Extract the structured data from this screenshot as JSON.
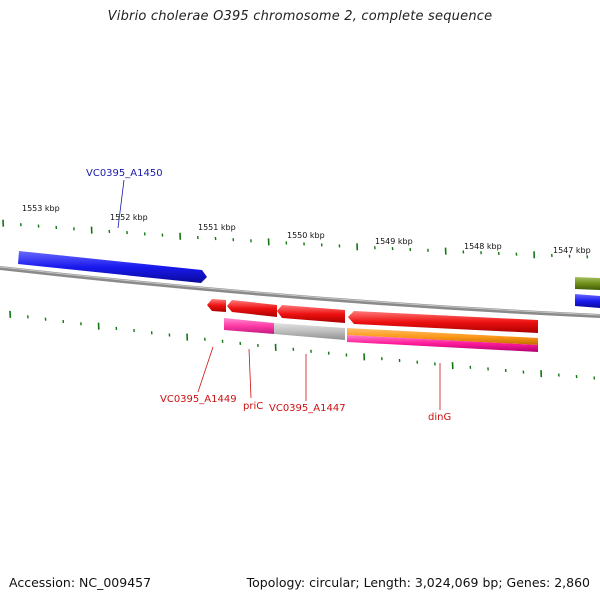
{
  "title": "Vibrio cholerae O395 chromosome 2, complete sequence",
  "footer": {
    "accession": "Accession: NC_009457",
    "topology": "Topology: circular; Length: 3,024,069 bp; Genes: 2,860"
  },
  "ticks": {
    "labels": [
      "1553 kbp",
      "1552 kbp",
      "1551 kbp",
      "1550 kbp",
      "1549 kbp",
      "1548 kbp",
      "1547 kbp"
    ]
  },
  "genes": [
    {
      "id": "vc0395-a1450",
      "label": "VC0395_A1450",
      "strand": "+",
      "color": "#1a1aee",
      "label_color": "#1a1aaa"
    },
    {
      "id": "vc0395-a1449",
      "label": "VC0395_A1449",
      "strand": "-",
      "color": "#ee1111",
      "label_color": "#cc1111"
    },
    {
      "id": "pric",
      "label": "priC",
      "strand": "-",
      "color": "#ee1111",
      "label_color": "#cc1111"
    },
    {
      "id": "vc0395-a1447",
      "label": "VC0395_A1447",
      "strand": "-",
      "color": "#ee1111",
      "label_color": "#cc1111"
    },
    {
      "id": "ding",
      "label": "dinG",
      "strand": "-",
      "color": "#ee1111",
      "label_color": "#cc1111"
    }
  ],
  "features": {
    "feature_colors": [
      "#ff3aa6",
      "#bdbdbd",
      "#ff9a1a",
      "#ff1a9a",
      "#6f8f1a",
      "#1a1aee"
    ]
  },
  "colors": {
    "backbone": "#8a8a8a",
    "tick": "#117711",
    "tick_label": "#111111"
  }
}
